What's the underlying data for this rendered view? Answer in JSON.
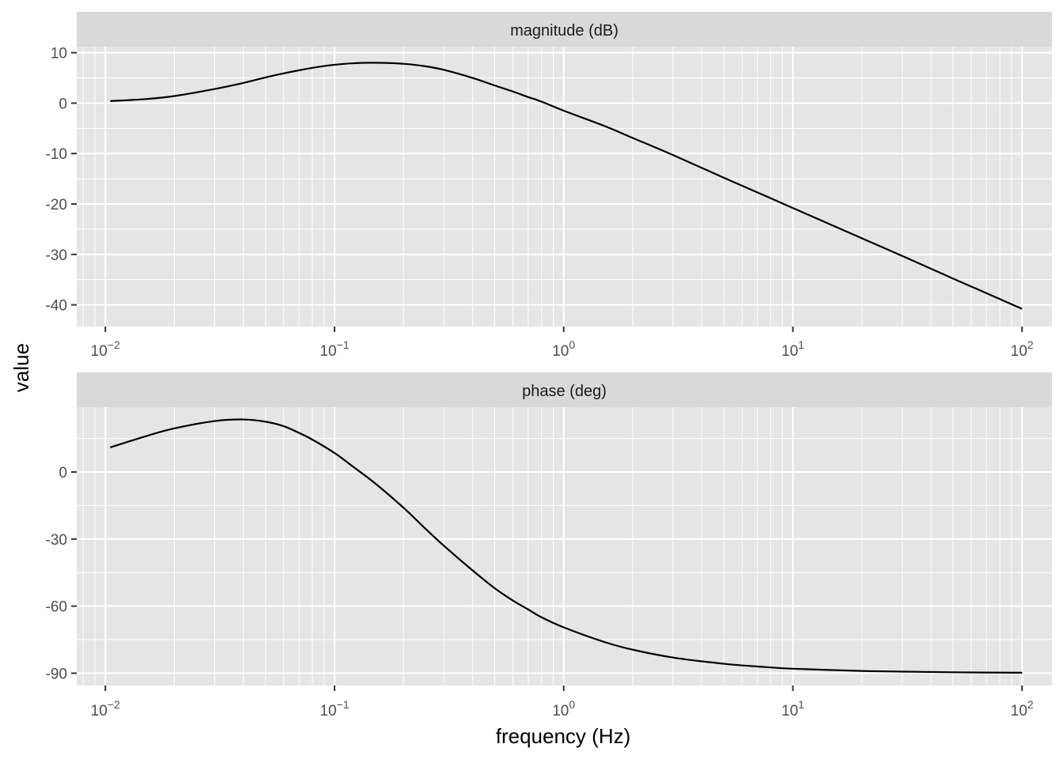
{
  "chart_data": {
    "type": "line",
    "xlabel": "frequency (Hz)",
    "ylabel": "value",
    "x_scale": "log10",
    "xlim": [
      0.0075,
      135
    ],
    "x_ticks": [
      0.01,
      0.1,
      1,
      10,
      100
    ],
    "x_tick_labels": [
      {
        "base": "10",
        "exp": "−2"
      },
      {
        "base": "10",
        "exp": "−1"
      },
      {
        "base": "10",
        "exp": "0"
      },
      {
        "base": "10",
        "exp": "1"
      },
      {
        "base": "10",
        "exp": "2"
      }
    ],
    "grid": true,
    "panels": [
      {
        "strip_label": "magnitude (dB)",
        "ylim": [
          -44.3,
          11.2
        ],
        "y_ticks": [
          10,
          0,
          -10,
          -20,
          -30,
          -40
        ],
        "y_tick_labels": [
          "10",
          "0",
          "-10",
          "-20",
          "-30",
          "-40"
        ],
        "points": [
          [
            0.0105,
            0.4
          ],
          [
            0.015,
            0.8
          ],
          [
            0.02,
            1.4
          ],
          [
            0.03,
            2.8
          ],
          [
            0.04,
            4.0
          ],
          [
            0.05,
            5.1
          ],
          [
            0.06,
            5.9
          ],
          [
            0.08,
            7.0
          ],
          [
            0.1,
            7.6
          ],
          [
            0.12,
            7.9
          ],
          [
            0.15,
            8.0
          ],
          [
            0.2,
            7.8
          ],
          [
            0.25,
            7.3
          ],
          [
            0.3,
            6.6
          ],
          [
            0.4,
            5.0
          ],
          [
            0.5,
            3.5
          ],
          [
            0.6,
            2.3
          ],
          [
            0.7,
            1.2
          ],
          [
            0.8,
            0.3
          ],
          [
            1.0,
            -1.5
          ],
          [
            1.5,
            -4.5
          ],
          [
            2,
            -6.9
          ],
          [
            3,
            -10.3
          ],
          [
            5,
            -14.8
          ],
          [
            7,
            -17.7
          ],
          [
            10,
            -20.8
          ],
          [
            20,
            -26.8
          ],
          [
            30,
            -30.3
          ],
          [
            50,
            -34.8
          ],
          [
            70,
            -37.7
          ],
          [
            100,
            -40.8
          ]
        ]
      },
      {
        "strip_label": "phase (deg)",
        "ylim": [
          -95.5,
          29
        ],
        "y_ticks": [
          0,
          -30,
          -60,
          -90
        ],
        "y_tick_labels": [
          "0",
          "-30",
          "-60",
          "-90"
        ],
        "points": [
          [
            0.0105,
            11
          ],
          [
            0.015,
            16
          ],
          [
            0.02,
            19.5
          ],
          [
            0.03,
            22.8
          ],
          [
            0.04,
            23.5
          ],
          [
            0.05,
            22.5
          ],
          [
            0.06,
            20.5
          ],
          [
            0.07,
            17.5
          ],
          [
            0.08,
            14.5
          ],
          [
            0.1,
            8.5
          ],
          [
            0.12,
            2.5
          ],
          [
            0.15,
            -5
          ],
          [
            0.2,
            -16
          ],
          [
            0.25,
            -25.5
          ],
          [
            0.3,
            -33
          ],
          [
            0.4,
            -44
          ],
          [
            0.5,
            -52
          ],
          [
            0.6,
            -57.5
          ],
          [
            0.7,
            -61.5
          ],
          [
            0.8,
            -65
          ],
          [
            1.0,
            -69.5
          ],
          [
            1.5,
            -76
          ],
          [
            2,
            -79.5
          ],
          [
            3,
            -83
          ],
          [
            5,
            -85.8
          ],
          [
            7,
            -87
          ],
          [
            10,
            -88
          ],
          [
            20,
            -89
          ],
          [
            30,
            -89.3
          ],
          [
            50,
            -89.6
          ],
          [
            100,
            -89.8
          ]
        ]
      }
    ]
  }
}
